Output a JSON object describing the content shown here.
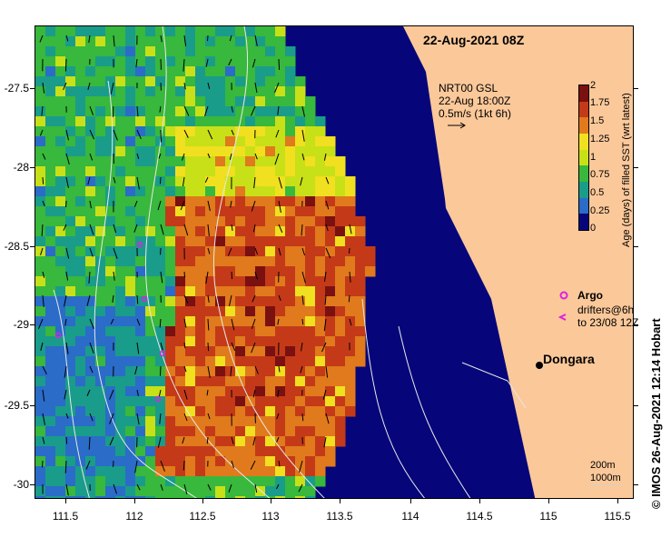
{
  "map": {
    "title": "22-Aug-2021 08Z",
    "lat_ticks": [
      "-27.5",
      "-28",
      "-28.5",
      "-29",
      "-29.5",
      "-30"
    ],
    "lon_ticks": [
      "111.5",
      "112",
      "112.5",
      "113",
      "113.5",
      "114",
      "114.5",
      "115",
      "115.5"
    ],
    "lat_range": [
      -30.1,
      -27.1
    ],
    "lon_range": [
      111.3,
      115.7
    ]
  },
  "vector_legend": {
    "line1": "NRT00 GSL",
    "line2": "22-Aug 18:00Z",
    "line3": "0.5m/s (1kt 6h)"
  },
  "colorbar": {
    "title": "Age (days) of filled SST (wrt latest)",
    "ticks": [
      "2",
      "1.75",
      "1.5",
      "1.25",
      "1",
      "0.75",
      "0.5",
      "0.25",
      "0"
    ],
    "colors": [
      "#7a1010",
      "#c43a18",
      "#e07a1c",
      "#f0e020",
      "#c8e018",
      "#38b83c",
      "#1a9c8a",
      "#2a6cc8",
      "#06067a"
    ]
  },
  "legend": {
    "argo": "Argo",
    "drifters_line1": "drifters@6h",
    "drifters_line2": "to 23/08 12Z",
    "argo_color": "#e020e0"
  },
  "place": {
    "name": "Dongara"
  },
  "depth_contours": {
    "line1": "200m",
    "line2": "1000m"
  },
  "credit": "© IMOS 26-Aug-2021 12:14 Hobart",
  "colors": {
    "land": "#fbc89a",
    "ocean_recent": "#06067a",
    "argo": "#e020e0"
  }
}
